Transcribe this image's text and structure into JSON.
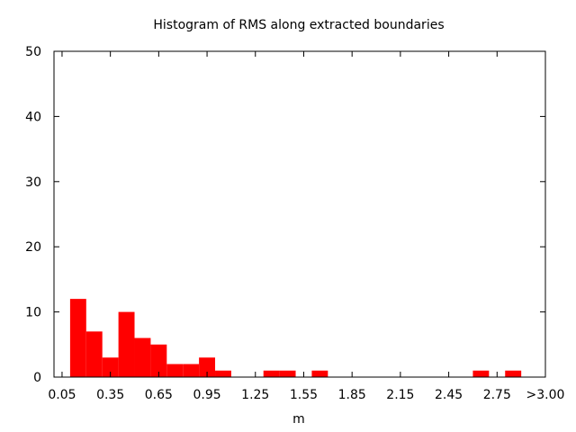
{
  "chart_data": {
    "type": "bar",
    "title": "Histogram of RMS along extracted boundaries",
    "xlabel": "m",
    "ylabel": "",
    "xlim": [
      0.0,
      3.05
    ],
    "ylim": [
      0,
      50
    ],
    "bin_width": 0.1,
    "x_ticks": [
      "0.05",
      "0.35",
      "0.65",
      "0.95",
      "1.25",
      "1.55",
      "1.85",
      "2.15",
      "2.45",
      "2.75",
      ">3.00"
    ],
    "y_ticks": [
      "0",
      "10",
      "20",
      "30",
      "40",
      "50"
    ],
    "bar_color": "#ff0000",
    "bins": [
      {
        "x": 0.15,
        "value": 12
      },
      {
        "x": 0.25,
        "value": 7
      },
      {
        "x": 0.35,
        "value": 3
      },
      {
        "x": 0.45,
        "value": 10
      },
      {
        "x": 0.55,
        "value": 6
      },
      {
        "x": 0.65,
        "value": 5
      },
      {
        "x": 0.75,
        "value": 2
      },
      {
        "x": 0.85,
        "value": 2
      },
      {
        "x": 0.95,
        "value": 3
      },
      {
        "x": 1.05,
        "value": 1
      },
      {
        "x": 1.35,
        "value": 1
      },
      {
        "x": 1.45,
        "value": 1
      },
      {
        "x": 1.65,
        "value": 1
      },
      {
        "x": 2.65,
        "value": 1
      },
      {
        "x": 2.85,
        "value": 1
      }
    ]
  }
}
